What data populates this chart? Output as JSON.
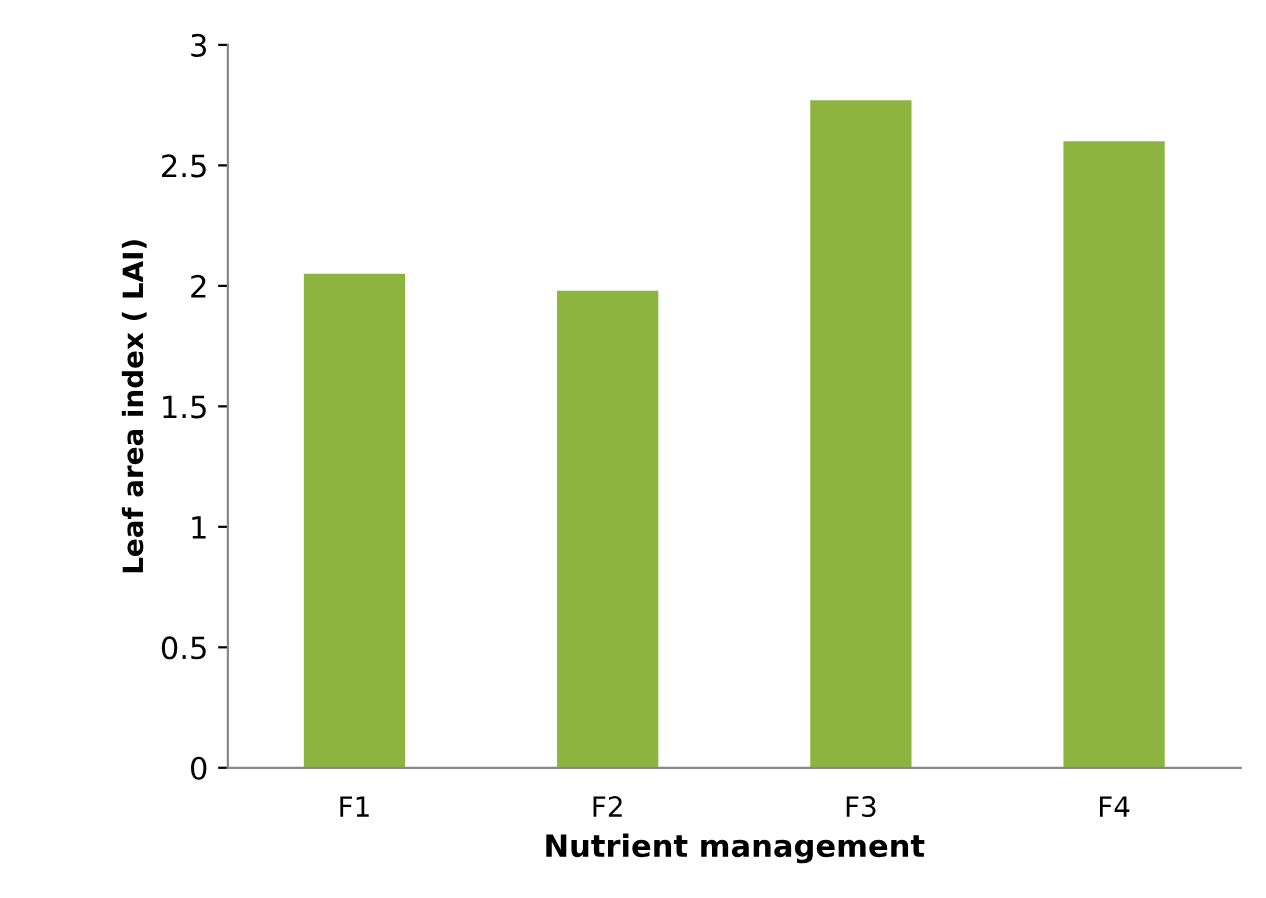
{
  "chart_data": {
    "type": "bar",
    "xlabel": "Nutrient management",
    "ylabel": "Leaf area index ( LAI)",
    "categories": [
      "F1",
      "F2",
      "F3",
      "F4"
    ],
    "values": [
      2.05,
      1.98,
      2.77,
      2.6
    ],
    "color": "#8db43e",
    "ylim": [
      0,
      3
    ],
    "yticks": [
      0,
      0.5,
      1,
      1.5,
      2,
      2.5,
      3
    ],
    "grid": false,
    "legend": false
  }
}
